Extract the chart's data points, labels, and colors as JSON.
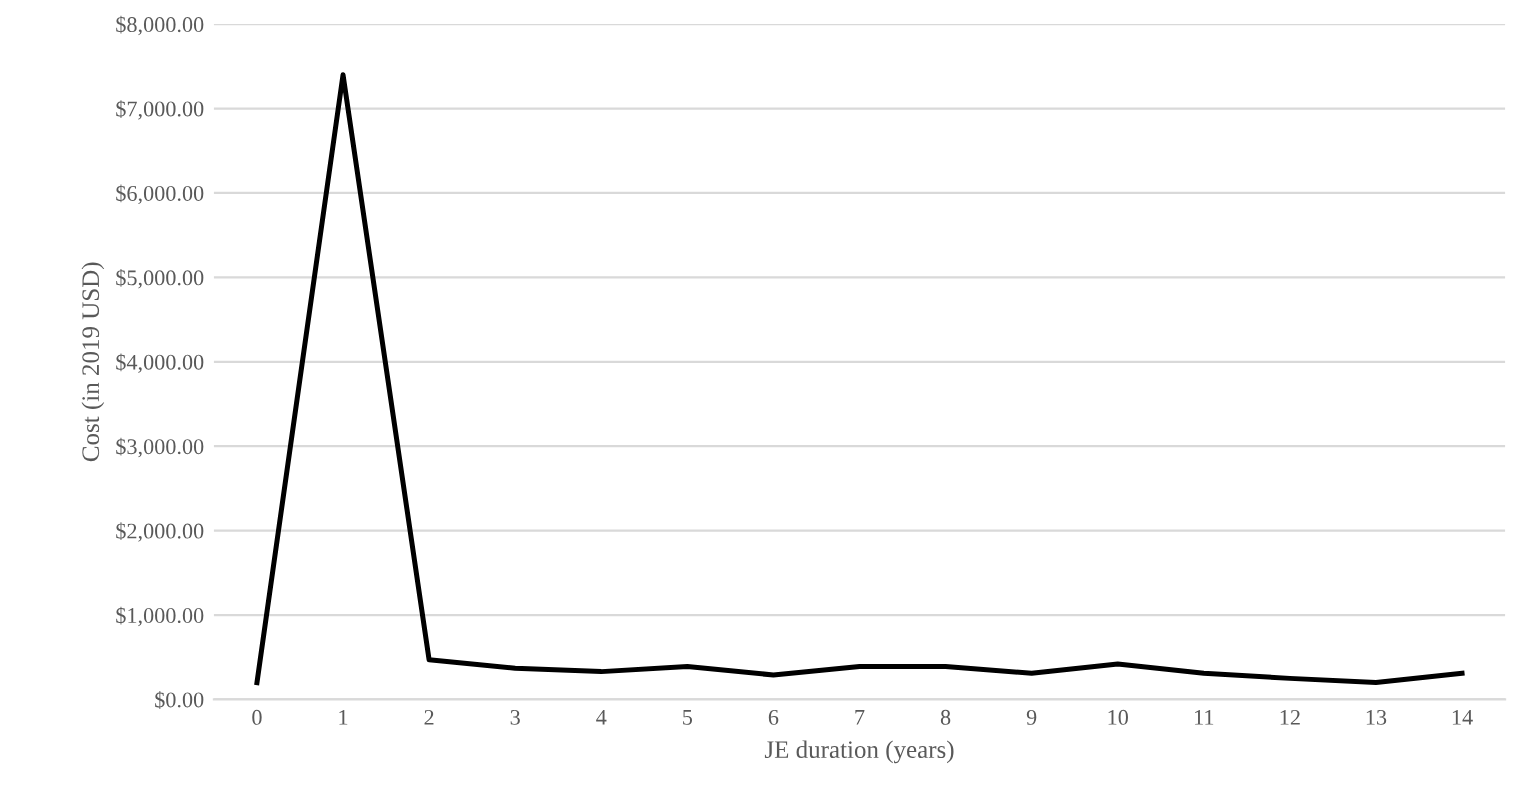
{
  "chart_data": {
    "type": "line",
    "xlabel": "JE duration (years)",
    "ylabel": "Cost (in 2019 USD)",
    "categories": [
      "0",
      "1",
      "2",
      "3",
      "4",
      "5",
      "6",
      "7",
      "8",
      "9",
      "10",
      "11",
      "12",
      "13",
      "14"
    ],
    "series": [
      {
        "color": "#000000",
        "values": [
          200,
          7400,
          470,
          370,
          330,
          390,
          290,
          390,
          390,
          310,
          420,
          310,
          250,
          200,
          310
        ]
      }
    ],
    "ylim": [
      0,
      8000
    ],
    "yticks": [
      {
        "value": 0,
        "label": "$0.00"
      },
      {
        "value": 1000,
        "label": "$1,000.00"
      },
      {
        "value": 2000,
        "label": "$2,000.00"
      },
      {
        "value": 3000,
        "label": "$3,000.00"
      },
      {
        "value": 4000,
        "label": "$4,000.00"
      },
      {
        "value": 5000,
        "label": "$5,000.00"
      },
      {
        "value": 6000,
        "label": "$6,000.00"
      },
      {
        "value": 7000,
        "label": "$7,000.00"
      },
      {
        "value": 8000,
        "label": "$8,000.00"
      }
    ],
    "grid": "y",
    "marker": "none",
    "line_style": "solid"
  }
}
